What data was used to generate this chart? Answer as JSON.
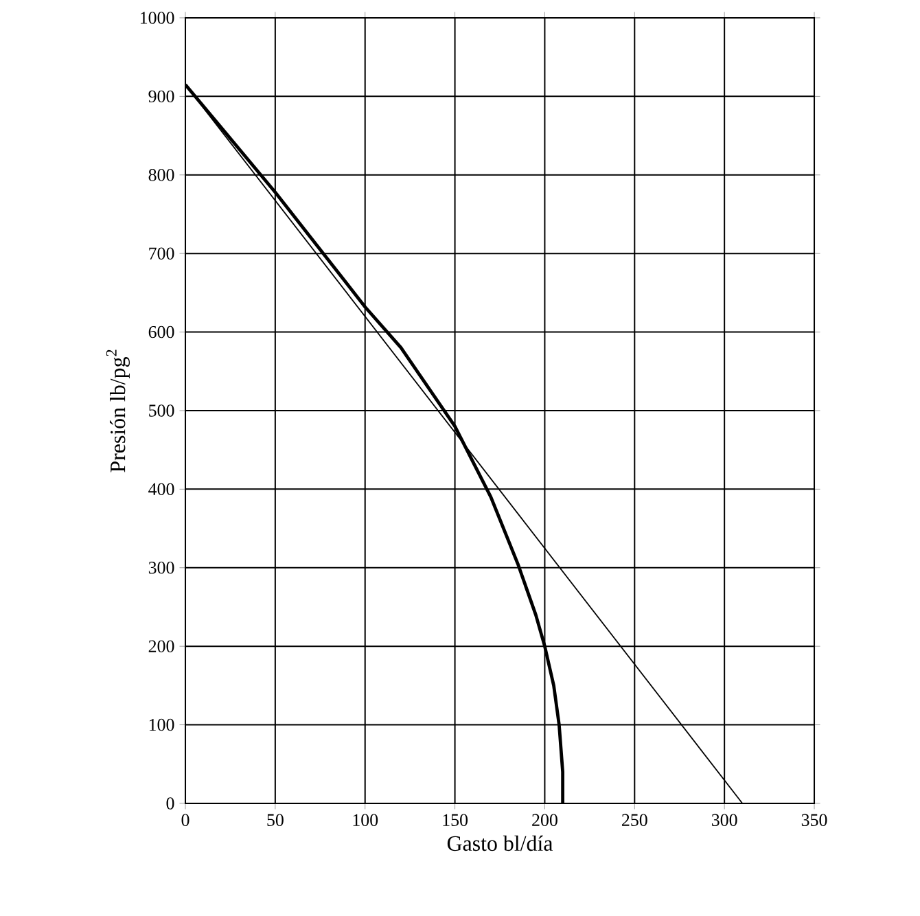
{
  "chart_data": {
    "type": "line",
    "xlabel": "Gasto bl/día",
    "ylabel": "Presión lb/pg$^{2}$",
    "xlim": [
      0,
      350
    ],
    "xticks": [
      0,
      50,
      100,
      150,
      200,
      250,
      300,
      350
    ],
    "ylim": [
      0,
      1000
    ],
    "yticks": [
      0,
      100,
      200,
      300,
      400,
      500,
      600,
      700,
      800,
      900,
      1000
    ],
    "grid": true,
    "series": [
      {
        "color": "#000000",
        "x": [
          0,
          310
        ],
        "values": [
          915,
          0
        ]
      },
      {
        "color": "#000000",
        "x": [
          0,
          50,
          100,
          120,
          150,
          170,
          185,
          195,
          200,
          205,
          208,
          210,
          210
        ],
        "values": [
          915,
          778,
          632,
          580,
          480,
          390,
          305,
          240,
          200,
          150,
          100,
          40,
          0
        ]
      }
    ]
  }
}
